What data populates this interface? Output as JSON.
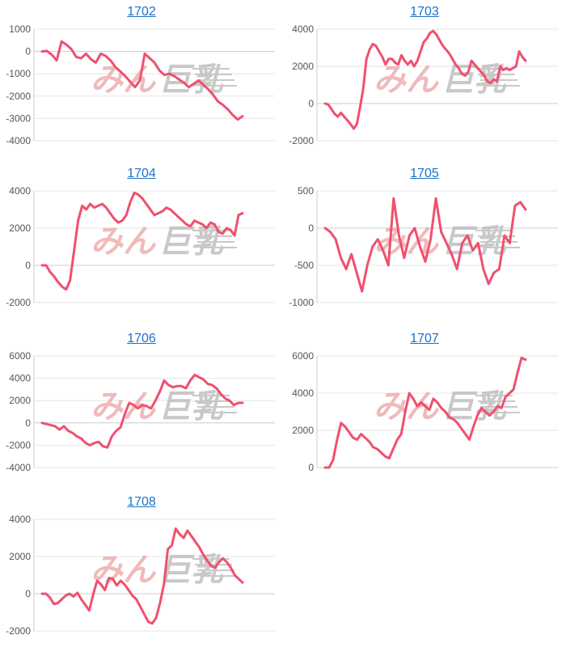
{
  "colors": {
    "line": "#f0506e",
    "grid": "#e6e6e6",
    "axis": "#cccccc",
    "link": "#1a73c9",
    "watermark_a": "#eba3a3",
    "watermark_b": "#b8b8b8"
  },
  "watermark": {
    "text_a": "みん",
    "text_b": "巨乳"
  },
  "chart_data": [
    {
      "type": "line",
      "title": "1702",
      "yticks": [
        1000,
        0,
        -1000,
        -2000,
        -3000,
        -4000
      ],
      "ylim": [
        -4000,
        1000
      ],
      "y": [
        0,
        20,
        -150,
        -400,
        450,
        300,
        100,
        -250,
        -300,
        -100,
        -350,
        -500,
        -100,
        -200,
        -400,
        -700,
        -900,
        -1100,
        -1350,
        -1600,
        -1300,
        -100,
        -300,
        -500,
        -850,
        -1050,
        -1000,
        -1100,
        -1250,
        -1400,
        -1600,
        -1450,
        -1300,
        -1500,
        -1700,
        -1950,
        -2250,
        -2400,
        -2600,
        -2850,
        -3050,
        -2900
      ]
    },
    {
      "type": "line",
      "title": "1703",
      "yticks": [
        4000,
        2000,
        0,
        -2000
      ],
      "ylim": [
        -2000,
        4000
      ],
      "y": [
        0,
        -50,
        -300,
        -550,
        -700,
        -500,
        -700,
        -900,
        -1100,
        -1350,
        -1100,
        -200,
        800,
        2400,
        2900,
        3200,
        3100,
        2800,
        2500,
        2100,
        2400,
        2400,
        2200,
        2100,
        2600,
        2300,
        2100,
        2300,
        2000,
        2300,
        2800,
        3300,
        3500,
        3800,
        3900,
        3700,
        3400,
        3100,
        2900,
        2700,
        2400,
        2100,
        1900,
        1600,
        1500,
        1700,
        2300,
        2100,
        1900,
        1700,
        1500,
        1200,
        1100,
        1300,
        1200,
        2000,
        1800,
        1900,
        1800,
        1900,
        2000,
        2800,
        2500,
        2300
      ]
    },
    {
      "type": "line",
      "title": "1704",
      "yticks": [
        4000,
        2000,
        0,
        -2000
      ],
      "ylim": [
        -2000,
        4000
      ],
      "y": [
        0,
        0,
        -350,
        -600,
        -900,
        -1150,
        -1300,
        -800,
        800,
        2400,
        3200,
        3000,
        3300,
        3100,
        3200,
        3300,
        3100,
        2800,
        2500,
        2300,
        2400,
        2700,
        3400,
        3900,
        3800,
        3600,
        3300,
        3000,
        2700,
        2800,
        2900,
        3100,
        3000,
        2800,
        2600,
        2400,
        2200,
        2100,
        2400,
        2300,
        2200,
        2000,
        2300,
        2200,
        1800,
        1700,
        2000,
        1900,
        1600,
        2700,
        2800
      ]
    },
    {
      "type": "line",
      "title": "1705",
      "yticks": [
        500,
        0,
        -500,
        -1000
      ],
      "ylim": [
        -1000,
        500
      ],
      "y": [
        0,
        -50,
        -150,
        -400,
        -550,
        -350,
        -600,
        -850,
        -500,
        -250,
        -150,
        -300,
        -500,
        400,
        -100,
        -400,
        -100,
        0,
        -250,
        -450,
        -150,
        400,
        -50,
        -200,
        -350,
        -550,
        -200,
        -100,
        -300,
        -200,
        -550,
        -750,
        -600,
        -550,
        -100,
        -200,
        300,
        350,
        250
      ]
    },
    {
      "type": "line",
      "title": "1706",
      "yticks": [
        6000,
        4000,
        2000,
        0,
        -2000,
        -4000
      ],
      "ylim": [
        -4000,
        6000
      ],
      "y": [
        0,
        -100,
        -200,
        -300,
        -600,
        -300,
        -700,
        -900,
        -1200,
        -1400,
        -1800,
        -2000,
        -1800,
        -1700,
        -2100,
        -2200,
        -1200,
        -700,
        -400,
        800,
        1800,
        1600,
        1300,
        1600,
        1500,
        1300,
        2000,
        2800,
        3800,
        3400,
        3200,
        3300,
        3300,
        3100,
        3800,
        4300,
        4100,
        3900,
        3500,
        3400,
        3100,
        2600,
        2200,
        2000,
        1600,
        1800,
        1800
      ]
    },
    {
      "type": "line",
      "title": "1707",
      "yticks": [
        6000,
        4000,
        2000,
        0
      ],
      "ylim": [
        0,
        6000
      ],
      "y": [
        0,
        0,
        400,
        1500,
        2400,
        2200,
        1900,
        1600,
        1500,
        1800,
        1600,
        1400,
        1100,
        1000,
        800,
        600,
        500,
        1000,
        1500,
        1800,
        3000,
        4000,
        3700,
        3300,
        3500,
        3300,
        3100,
        3700,
        3500,
        3200,
        3000,
        2700,
        2600,
        2400,
        2100,
        1800,
        1500,
        2200,
        2800,
        3200,
        3000,
        2800,
        3000,
        3300,
        3200,
        3800,
        4000,
        4200,
        5100,
        5900,
        5800
      ]
    },
    {
      "type": "line",
      "title": "1708",
      "yticks": [
        4000,
        2000,
        0,
        -2000
      ],
      "ylim": [
        -2000,
        4000
      ],
      "y": [
        0,
        0,
        -200,
        -550,
        -500,
        -300,
        -100,
        0,
        -150,
        50,
        -300,
        -600,
        -900,
        -50,
        700,
        500,
        200,
        850,
        800,
        450,
        700,
        500,
        200,
        -100,
        -300,
        -700,
        -1100,
        -1500,
        -1600,
        -1300,
        -500,
        500,
        2400,
        2600,
        3500,
        3200,
        3000,
        3400,
        3100,
        2800,
        2500,
        2100,
        1800,
        1500,
        1400,
        1700,
        1900,
        1700,
        1400,
        1000,
        800,
        600
      ]
    }
  ]
}
